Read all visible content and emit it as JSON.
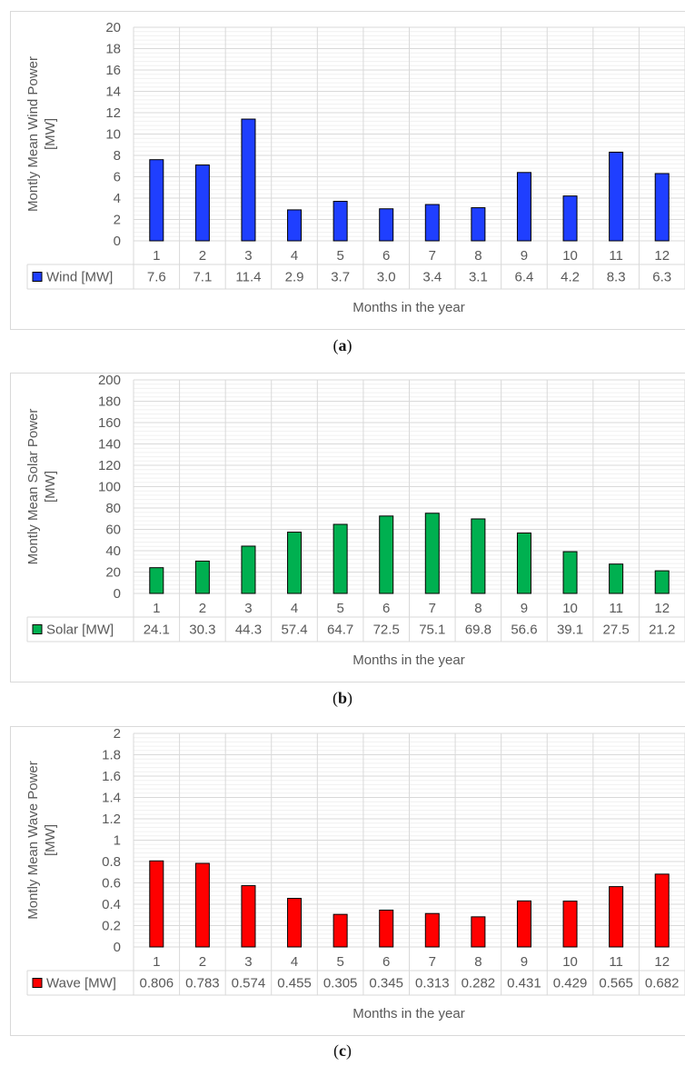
{
  "captions": [
    "a",
    "b",
    "c"
  ],
  "chart_data": [
    {
      "type": "bar",
      "categories": [
        "1",
        "2",
        "3",
        "4",
        "5",
        "6",
        "7",
        "8",
        "9",
        "10",
        "11",
        "12"
      ],
      "series": [
        {
          "name": "Wind [MW]",
          "values": [
            7.6,
            7.1,
            11.4,
            2.9,
            3.7,
            3.0,
            3.4,
            3.1,
            6.4,
            4.2,
            8.3,
            6.3
          ],
          "labels": [
            "7.6",
            "7.1",
            "11.4",
            "2.9",
            "3.7",
            "3.0",
            "3.4",
            "3.1",
            "6.4",
            "4.2",
            "8.3",
            "6.3"
          ]
        }
      ],
      "xlabel": "Months in the year",
      "ylabel": [
        "Montly Mean Wind Power",
        "[MW]"
      ],
      "ylim": [
        0,
        20
      ],
      "yticks": [
        "0",
        "2",
        "4",
        "6",
        "8",
        "10",
        "12",
        "14",
        "16",
        "18",
        "20"
      ],
      "color": "#1f3fff",
      "grid": true,
      "legend": "data-table"
    },
    {
      "type": "bar",
      "categories": [
        "1",
        "2",
        "3",
        "4",
        "5",
        "6",
        "7",
        "8",
        "9",
        "10",
        "11",
        "12"
      ],
      "series": [
        {
          "name": "Solar [MW]",
          "values": [
            24.1,
            30.3,
            44.3,
            57.4,
            64.7,
            72.5,
            75.1,
            69.8,
            56.6,
            39.1,
            27.5,
            21.2
          ],
          "labels": [
            "24.1",
            "30.3",
            "44.3",
            "57.4",
            "64.7",
            "72.5",
            "75.1",
            "69.8",
            "56.6",
            "39.1",
            "27.5",
            "21.2"
          ]
        }
      ],
      "xlabel": "Months in the year",
      "ylabel": [
        "Montly Mean Solar Power",
        "[MW]"
      ],
      "ylim": [
        0,
        200
      ],
      "yticks": [
        "0",
        "20",
        "40",
        "60",
        "80",
        "100",
        "120",
        "140",
        "160",
        "180",
        "200"
      ],
      "color": "#00b050",
      "grid": true,
      "legend": "data-table"
    },
    {
      "type": "bar",
      "categories": [
        "1",
        "2",
        "3",
        "4",
        "5",
        "6",
        "7",
        "8",
        "9",
        "10",
        "11",
        "12"
      ],
      "series": [
        {
          "name": "Wave [MW]",
          "values": [
            0.806,
            0.783,
            0.574,
            0.455,
            0.305,
            0.345,
            0.313,
            0.282,
            0.431,
            0.429,
            0.565,
            0.682
          ],
          "labels": [
            "0.806",
            "0.783",
            "0.574",
            "0.455",
            "0.305",
            "0.345",
            "0.313",
            "0.282",
            "0.431",
            "0.429",
            "0.565",
            "0.682"
          ]
        }
      ],
      "xlabel": "Months in the year",
      "ylabel": [
        "Montly Mean Wave Power",
        "[MW]"
      ],
      "ylim": [
        0,
        2
      ],
      "yticks": [
        "0",
        "0.2",
        "0.4",
        "0.6",
        "0.8",
        "1",
        "1.2",
        "1.4",
        "1.6",
        "1.8",
        "2"
      ],
      "color": "#ff0000",
      "grid": true,
      "legend": "data-table"
    }
  ]
}
